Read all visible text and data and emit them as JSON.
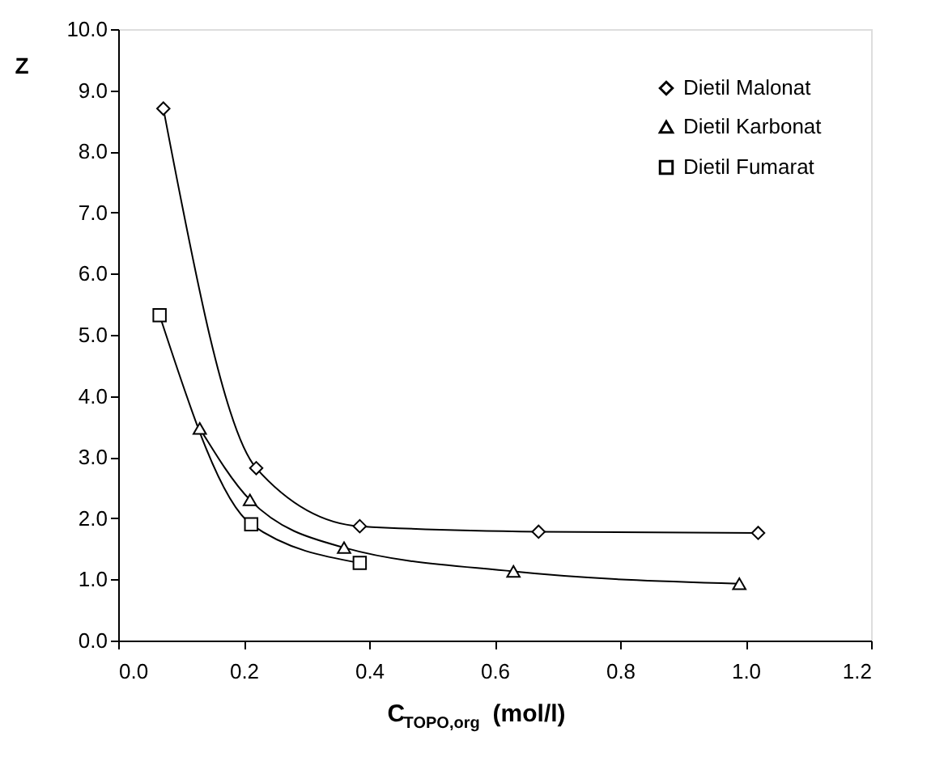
{
  "chart_data": {
    "type": "line",
    "xlabel": "C$_{TOPO,org}$ (mol/l)",
    "ylabel": "Z",
    "xlim": [
      0.0,
      1.2
    ],
    "xticks": [
      {
        "value": 0,
        "label": "0.0"
      },
      0.2,
      0.4,
      0.6,
      0.8,
      {
        "value": 1,
        "label": "1.0"
      },
      1.2
    ],
    "ylim": [
      0.0,
      10.0
    ],
    "yticks": [
      {
        "value": 0,
        "label": "0.0"
      },
      {
        "value": 1,
        "label": "1.0"
      },
      {
        "value": 2,
        "label": "2.0"
      },
      {
        "value": 3,
        "label": "3.0"
      },
      {
        "value": 4,
        "label": "4.0"
      },
      {
        "value": 5,
        "label": "5.0"
      },
      {
        "value": 6,
        "label": "6.0"
      },
      {
        "value": 7,
        "label": "7.0"
      },
      {
        "value": 8,
        "label": "8.0"
      },
      {
        "value": 9,
        "label": "9.0"
      },
      {
        "value": 10,
        "label": "10.0"
      }
    ],
    "grid": false,
    "legend": "top right",
    "line_style": "solid",
    "series": [
      {
        "name": "Dietil Malonat",
        "color": "#000000",
        "marker": "diamond",
        "x": [
          0.072,
          0.22,
          0.385,
          0.67,
          1.02
        ],
        "values": [
          8.7,
          2.82,
          1.87,
          1.78,
          1.76
        ]
      },
      {
        "name": "Dietil Karbonat",
        "color": "#000000",
        "marker": "triangle",
        "x": [
          0.13,
          0.21,
          0.36,
          0.63,
          0.99
        ],
        "values": [
          3.47,
          2.3,
          1.52,
          1.13,
          0.93
        ]
      },
      {
        "name": "Dietil Fumarat",
        "color": "#000000",
        "marker": "square",
        "x": [
          0.066,
          0.212,
          0.385
        ],
        "values": [
          5.32,
          1.9,
          1.27
        ]
      }
    ]
  }
}
